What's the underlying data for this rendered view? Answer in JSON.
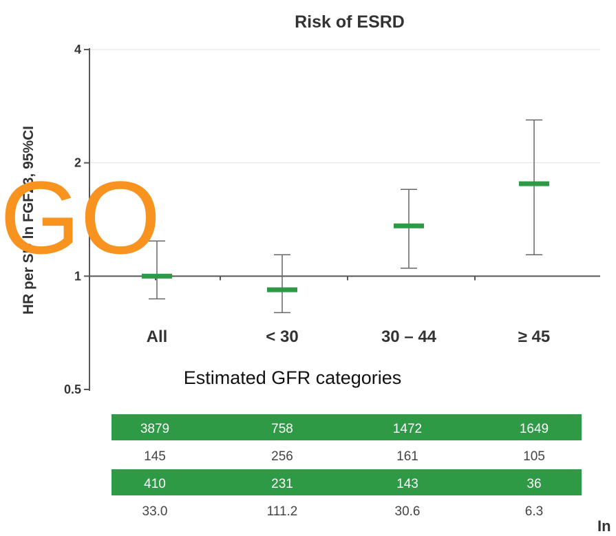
{
  "chart_data": {
    "type": "errorbar",
    "title": "Risk of ESRD",
    "ylabel": "HR per SD ln FGF23, 95%CI",
    "xlabel": "Estimated GFR categories",
    "yscale": "log",
    "ylim": [
      0.5,
      4
    ],
    "yticks": [
      "0.5",
      "1",
      "2",
      "4"
    ],
    "reference_line": 1,
    "grid": true,
    "categories": [
      "All",
      "< 30",
      "30 – 44",
      "≥ 45"
    ],
    "series": [
      {
        "hr": [
          1.0,
          0.92,
          1.36,
          1.76
        ],
        "ci_low": [
          0.87,
          0.8,
          1.05,
          1.14
        ],
        "ci_high": [
          1.24,
          1.14,
          1.7,
          2.6
        ]
      }
    ],
    "marker_color": "#2e9a45",
    "errorbar_color": "#666666"
  },
  "overlay_text": "GO",
  "overlay_color": "#f7931e",
  "table": {
    "header_color": "#2e9a45",
    "rows": [
      {
        "highlight": true,
        "cells": [
          "3879",
          "758",
          "1472",
          "1649"
        ]
      },
      {
        "highlight": false,
        "cells": [
          "145",
          "256",
          "161",
          "105"
        ]
      },
      {
        "highlight": true,
        "cells": [
          "410",
          "231",
          "143",
          "36"
        ]
      },
      {
        "highlight": false,
        "cells": [
          "33.0",
          "111.2",
          "30.6",
          "6.3"
        ]
      }
    ],
    "truncated_label": "In"
  }
}
